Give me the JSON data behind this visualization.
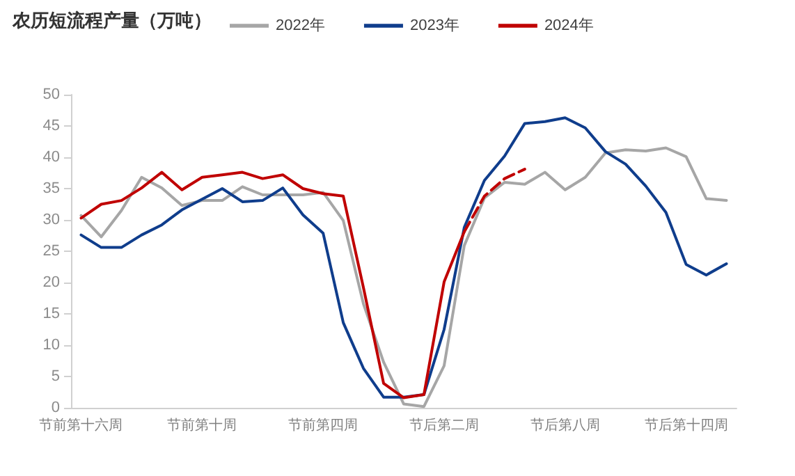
{
  "chart_data": {
    "type": "line",
    "title": "农历短流程产量（万吨）",
    "categories": [
      "节前第十六周",
      null,
      null,
      null,
      null,
      null,
      "节前第十周",
      null,
      null,
      null,
      null,
      null,
      "节前第四周",
      null,
      null,
      null,
      null,
      null,
      "节后第二周",
      null,
      null,
      null,
      null,
      null,
      "节后第八周",
      null,
      null,
      null,
      null,
      null,
      "节后第十四周",
      null,
      null
    ],
    "series": [
      {
        "name": "2022年",
        "color": "#a6a6a6",
        "values": [
          30.7,
          27.3,
          31.5,
          36.8,
          35.1,
          32.3,
          33.1,
          33.1,
          35.3,
          34.0,
          34.0,
          34.0,
          34.4,
          29.9,
          16.6,
          7.3,
          0.6,
          0.2,
          6.7,
          25.9,
          33.5,
          36.0,
          35.7,
          37.6,
          34.8,
          36.8,
          40.7,
          41.2,
          41.0,
          41.5,
          40.1,
          33.4,
          33.1
        ]
      },
      {
        "name": "2023年",
        "color": "#0f3d8c",
        "values": [
          27.6,
          25.6,
          25.6,
          27.6,
          29.2,
          31.6,
          33.3,
          35.0,
          32.9,
          33.1,
          35.1,
          30.8,
          27.9,
          13.6,
          6.3,
          1.7,
          1.7,
          2.1,
          12.5,
          28.8,
          36.3,
          40.2,
          45.4,
          45.7,
          46.3,
          44.7,
          40.9,
          38.9,
          35.4,
          31.2,
          22.9,
          21.2,
          23.0
        ]
      },
      {
        "name": "2024年",
        "color": "#c00000",
        "values": [
          30.3,
          32.5,
          33.1,
          35.1,
          37.6,
          34.8,
          36.8,
          37.2,
          37.6,
          36.6,
          37.2,
          35.0,
          34.2,
          33.8,
          19.2,
          3.9,
          1.6,
          2.1,
          20.1,
          28.1,
          null,
          null,
          null,
          null,
          null,
          null,
          null,
          null,
          null,
          null,
          null,
          null,
          null
        ]
      },
      {
        "color": "#c00000",
        "line_style": "dashed",
        "values": [
          null,
          null,
          null,
          null,
          null,
          null,
          null,
          null,
          null,
          null,
          null,
          null,
          null,
          null,
          null,
          null,
          null,
          null,
          null,
          28.1,
          33.8,
          36.6,
          38.1,
          null,
          null,
          null,
          null,
          null,
          null,
          null,
          null,
          null,
          null
        ]
      }
    ],
    "ylim": [
      0,
      50
    ],
    "yticks": [
      0,
      5,
      10,
      15,
      20,
      25,
      30,
      35,
      40,
      45,
      50
    ],
    "grid": false,
    "legend": "top",
    "marker": "none",
    "line_style": "solid"
  }
}
